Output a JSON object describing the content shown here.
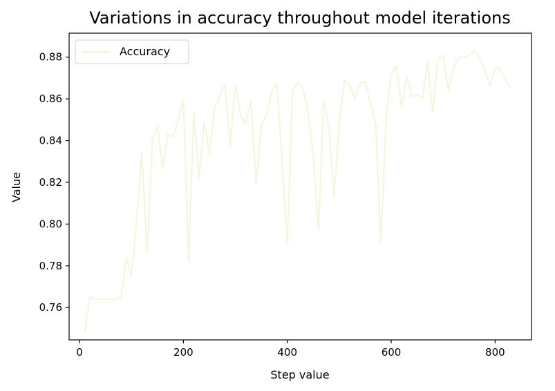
{
  "chart_data": {
    "type": "line",
    "title": "Variations in accuracy throughout model iterations",
    "xlabel": "Step value",
    "ylabel": "Value",
    "xlim": [
      -20,
      870
    ],
    "ylim": [
      0.7445,
      0.8915
    ],
    "xticks": [
      0,
      200,
      400,
      600,
      800
    ],
    "yticks": [
      0.76,
      0.78,
      0.8,
      0.82,
      0.84,
      0.86,
      0.88
    ],
    "xtick_labels": [
      "0",
      "200",
      "400",
      "600",
      "800"
    ],
    "ytick_labels": [
      "0.76",
      "0.78",
      "0.80",
      "0.82",
      "0.84",
      "0.86",
      "0.88"
    ],
    "grid": false,
    "legend_position": "top-left",
    "series": [
      {
        "name": "Accuracy",
        "color": "#f5f5dc",
        "x": [
          10,
          20,
          30,
          40,
          50,
          60,
          70,
          80,
          90,
          100,
          110,
          120,
          130,
          140,
          150,
          160,
          170,
          180,
          190,
          200,
          210,
          220,
          230,
          240,
          250,
          260,
          270,
          280,
          290,
          300,
          310,
          320,
          330,
          340,
          350,
          360,
          370,
          380,
          390,
          400,
          410,
          420,
          430,
          440,
          450,
          460,
          470,
          480,
          490,
          500,
          510,
          520,
          530,
          540,
          550,
          560,
          570,
          580,
          590,
          600,
          610,
          620,
          630,
          640,
          650,
          660,
          670,
          680,
          690,
          700,
          710,
          720,
          730,
          740,
          750,
          760,
          770,
          780,
          790,
          800,
          810,
          820,
          830
        ],
        "y": [
          0.748,
          0.765,
          0.764,
          0.764,
          0.764,
          0.764,
          0.764,
          0.765,
          0.784,
          0.775,
          0.802,
          0.834,
          0.786,
          0.839,
          0.847,
          0.827,
          0.843,
          0.842,
          0.85,
          0.86,
          0.782,
          0.854,
          0.822,
          0.849,
          0.834,
          0.856,
          0.861,
          0.867,
          0.837,
          0.867,
          0.852,
          0.848,
          0.859,
          0.819,
          0.848,
          0.852,
          0.864,
          0.867,
          0.83,
          0.79,
          0.864,
          0.868,
          0.865,
          0.853,
          0.833,
          0.797,
          0.859,
          0.847,
          0.813,
          0.848,
          0.869,
          0.867,
          0.86,
          0.868,
          0.868,
          0.858,
          0.848,
          0.791,
          0.85,
          0.872,
          0.876,
          0.856,
          0.871,
          0.861,
          0.862,
          0.86,
          0.878,
          0.854,
          0.879,
          0.881,
          0.864,
          0.875,
          0.88,
          0.88,
          0.881,
          0.883,
          0.88,
          0.874,
          0.866,
          0.875,
          0.874,
          0.869,
          0.865
        ]
      }
    ]
  }
}
